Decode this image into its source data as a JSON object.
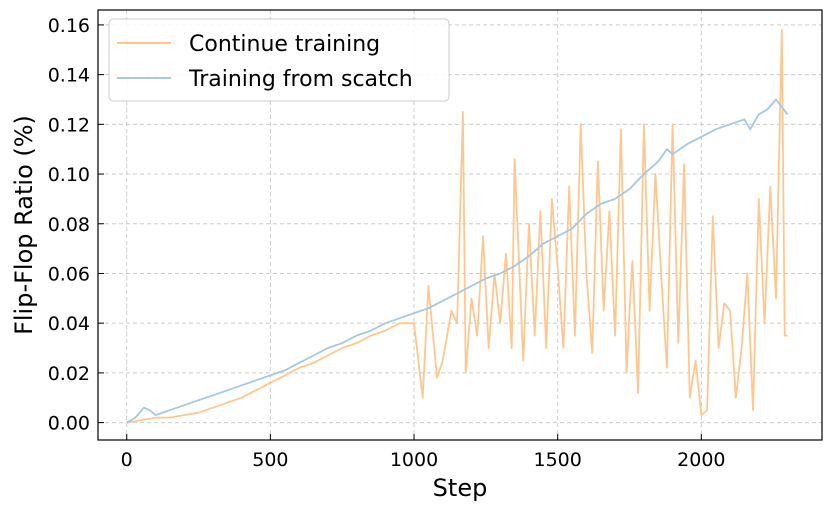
{
  "chart_data": {
    "type": "line",
    "xlabel": "Step",
    "ylabel": "Flip-Flop Ratio (%)",
    "xlim": [
      -100,
      2420
    ],
    "ylim": [
      -0.007,
      0.166
    ],
    "x_ticks": [
      0,
      500,
      1000,
      1500,
      2000
    ],
    "y_ticks": [
      0.0,
      0.02,
      0.04,
      0.06,
      0.08,
      0.1,
      0.12,
      0.14,
      0.16
    ],
    "y_tick_labels": [
      "0.00",
      "0.02",
      "0.04",
      "0.06",
      "0.08",
      "0.10",
      "0.12",
      "0.14",
      "0.16"
    ],
    "grid": true,
    "legend_position": "top-left",
    "series": [
      {
        "name": "Continue training",
        "color": "#ffc78f",
        "x": [
          0,
          50,
          100,
          150,
          200,
          250,
          300,
          350,
          400,
          450,
          500,
          550,
          600,
          650,
          700,
          750,
          800,
          850,
          900,
          950,
          1000,
          1030,
          1050,
          1080,
          1100,
          1130,
          1150,
          1170,
          1180,
          1200,
          1220,
          1240,
          1260,
          1280,
          1300,
          1320,
          1340,
          1350,
          1380,
          1400,
          1420,
          1440,
          1460,
          1480,
          1500,
          1520,
          1540,
          1560,
          1580,
          1600,
          1620,
          1640,
          1660,
          1680,
          1700,
          1720,
          1740,
          1750,
          1760,
          1780,
          1800,
          1820,
          1840,
          1860,
          1880,
          1900,
          1920,
          1940,
          1960,
          1980,
          2000,
          2020,
          2040,
          2060,
          2080,
          2100,
          2120,
          2140,
          2160,
          2180,
          2200,
          2220,
          2240,
          2260,
          2280,
          2290,
          2300
        ],
        "y": [
          0.0,
          0.001,
          0.002,
          0.002,
          0.003,
          0.004,
          0.006,
          0.008,
          0.01,
          0.013,
          0.016,
          0.019,
          0.022,
          0.024,
          0.027,
          0.03,
          0.032,
          0.035,
          0.037,
          0.04,
          0.04,
          0.01,
          0.055,
          0.018,
          0.025,
          0.045,
          0.04,
          0.125,
          0.02,
          0.05,
          0.035,
          0.075,
          0.03,
          0.06,
          0.04,
          0.068,
          0.03,
          0.106,
          0.025,
          0.08,
          0.035,
          0.085,
          0.03,
          0.09,
          0.062,
          0.03,
          0.095,
          0.035,
          0.12,
          0.06,
          0.028,
          0.105,
          0.045,
          0.085,
          0.035,
          0.118,
          0.02,
          0.045,
          0.065,
          0.012,
          0.12,
          0.045,
          0.1,
          0.06,
          0.022,
          0.12,
          0.032,
          0.104,
          0.01,
          0.025,
          0.003,
          0.005,
          0.083,
          0.03,
          0.048,
          0.045,
          0.01,
          0.03,
          0.06,
          0.005,
          0.09,
          0.04,
          0.095,
          0.05,
          0.158,
          0.035,
          0.035
        ]
      },
      {
        "name": "Training from scatch",
        "color": "#a6c8e2",
        "x": [
          0,
          30,
          60,
          80,
          100,
          150,
          200,
          250,
          300,
          350,
          400,
          450,
          500,
          550,
          600,
          650,
          700,
          750,
          800,
          850,
          900,
          950,
          1000,
          1050,
          1100,
          1150,
          1200,
          1250,
          1300,
          1350,
          1400,
          1450,
          1500,
          1550,
          1600,
          1650,
          1700,
          1750,
          1800,
          1850,
          1880,
          1900,
          1950,
          2000,
          2050,
          2100,
          2150,
          2170,
          2200,
          2230,
          2260,
          2280,
          2300
        ],
        "y": [
          0.0,
          0.002,
          0.006,
          0.005,
          0.003,
          0.005,
          0.007,
          0.009,
          0.011,
          0.013,
          0.015,
          0.017,
          0.019,
          0.021,
          0.024,
          0.027,
          0.03,
          0.032,
          0.035,
          0.037,
          0.04,
          0.042,
          0.044,
          0.046,
          0.049,
          0.052,
          0.055,
          0.058,
          0.06,
          0.063,
          0.067,
          0.072,
          0.075,
          0.078,
          0.084,
          0.088,
          0.09,
          0.094,
          0.1,
          0.105,
          0.11,
          0.108,
          0.112,
          0.115,
          0.118,
          0.12,
          0.122,
          0.118,
          0.124,
          0.126,
          0.13,
          0.127,
          0.124
        ]
      }
    ]
  }
}
